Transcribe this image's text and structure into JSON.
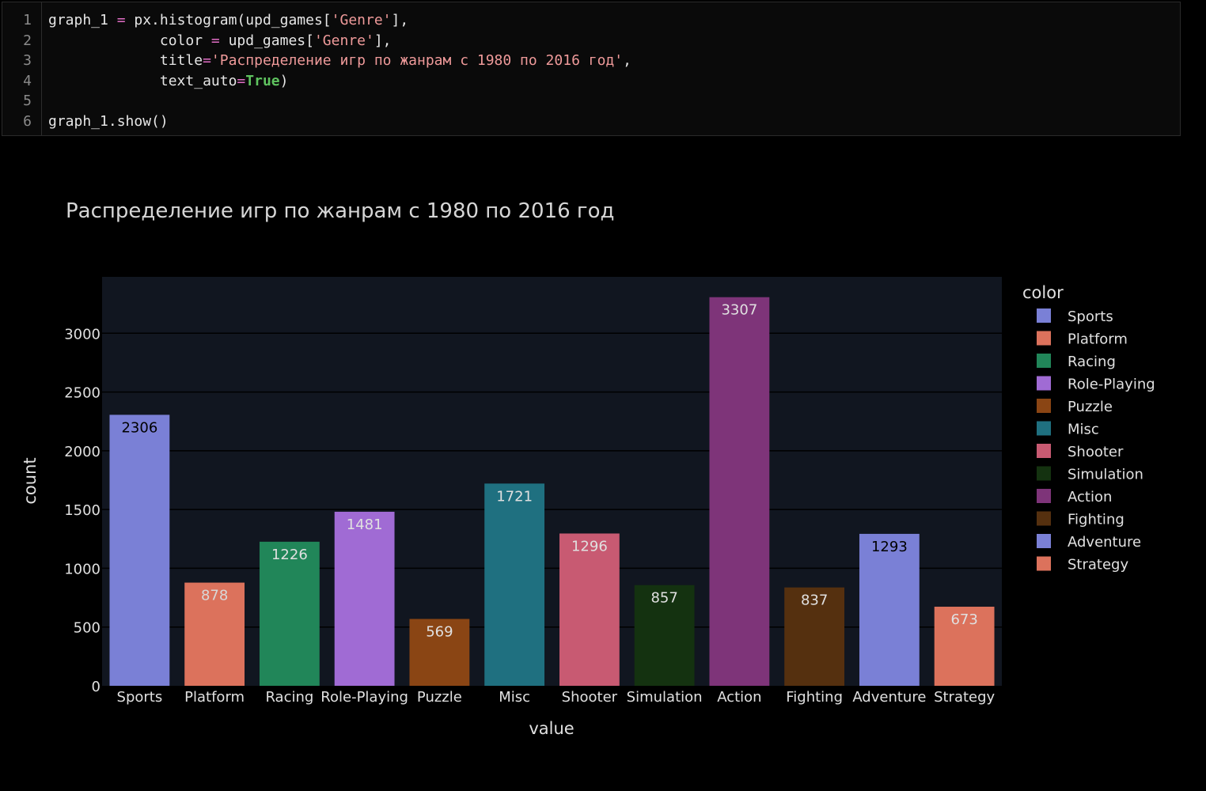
{
  "code": {
    "lines": [
      {
        "no": "1",
        "tokens": [
          {
            "t": "graph_1 ",
            "c": "plain"
          },
          {
            "t": "=",
            "c": "op"
          },
          {
            "t": " px.histogram(upd_games[",
            "c": "plain"
          },
          {
            "t": "'Genre'",
            "c": "str"
          },
          {
            "t": "],",
            "c": "plain"
          }
        ]
      },
      {
        "no": "2",
        "tokens": [
          {
            "t": "             color ",
            "c": "plain"
          },
          {
            "t": "=",
            "c": "op"
          },
          {
            "t": " upd_games[",
            "c": "plain"
          },
          {
            "t": "'Genre'",
            "c": "str"
          },
          {
            "t": "],",
            "c": "plain"
          }
        ]
      },
      {
        "no": "3",
        "tokens": [
          {
            "t": "             title",
            "c": "plain"
          },
          {
            "t": "=",
            "c": "op"
          },
          {
            "t": "'Распределение игр по жанрам с 1980 по 2016 год'",
            "c": "str"
          },
          {
            "t": ",",
            "c": "plain"
          }
        ]
      },
      {
        "no": "4",
        "tokens": [
          {
            "t": "             text_auto",
            "c": "plain"
          },
          {
            "t": "=",
            "c": "op"
          },
          {
            "t": "True",
            "c": "kw"
          },
          {
            "t": ")",
            "c": "plain"
          }
        ]
      },
      {
        "no": "5",
        "tokens": []
      },
      {
        "no": "6",
        "tokens": [
          {
            "t": "graph_1.show()",
            "c": "plain"
          }
        ]
      }
    ]
  },
  "colors": {
    "plot_bg": "#111620",
    "grid": "#000000",
    "axis_text": "#e0e0e0",
    "title_text": "#d6d6d6"
  },
  "chart_data": {
    "type": "bar",
    "title": "Распределение игр по жанрам с 1980 по 2016 год",
    "xlabel": "value",
    "ylabel": "count",
    "legend_title": "color",
    "legend_position": "right",
    "ylim": [
      0,
      3480
    ],
    "yticks": [
      0,
      500,
      1000,
      1500,
      2000,
      2500,
      3000
    ],
    "grid": true,
    "categories": [
      "Sports",
      "Platform",
      "Racing",
      "Role-Playing",
      "Puzzle",
      "Misc",
      "Shooter",
      "Simulation",
      "Action",
      "Fighting",
      "Adventure",
      "Strategy"
    ],
    "values": [
      2306,
      878,
      1226,
      1481,
      569,
      1721,
      1296,
      857,
      3307,
      837,
      1293,
      673
    ],
    "bar_colors": [
      "#7a80d6",
      "#dc725c",
      "#218659",
      "#a06bd4",
      "#8a4514",
      "#1f7080",
      "#c85a72",
      "#143210",
      "#7e3479",
      "#55300f",
      "#7a80d6",
      "#dc725c"
    ],
    "label_colors": [
      "#000000",
      "#d8d8d8",
      "#e0e0e0",
      "#e0e0e0",
      "#e0e0e0",
      "#e0e0e0",
      "#e0e0e0",
      "#e0e0e0",
      "#e0e0e0",
      "#e0e0e0",
      "#000000",
      "#e0e0e0"
    ]
  }
}
